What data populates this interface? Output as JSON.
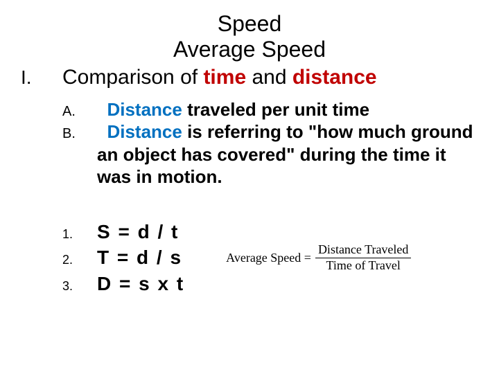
{
  "colors": {
    "background": "#ffffff",
    "text": "#000000",
    "time": "#c00000",
    "distance": "#c00000",
    "distance_word": "#0070c0"
  },
  "title": {
    "line1": "Speed",
    "line2": "Average Speed",
    "fontsize": 32
  },
  "outline": {
    "roman": "I.",
    "main_prefix": "Comparison of ",
    "kw_time": "time",
    "main_and": " and ",
    "kw_distance": "distance",
    "fontsize_main": 30,
    "sub": [
      {
        "label": "A.",
        "leading_word": "Distance",
        "rest": " traveled per unit time"
      },
      {
        "label": "B.",
        "leading_word": "Distance",
        "rest": " is referring to \"how much ground an object has covered\" during the time it was in motion."
      }
    ],
    "sub_fontsize": 26,
    "sub_label_fontsize": 20
  },
  "formulas": {
    "items": [
      {
        "label": "1.",
        "text": "S = d / t"
      },
      {
        "label": "2.",
        "text": "T = d / s"
      },
      {
        "label": "3.",
        "text": "D = s x t"
      }
    ],
    "fontsize": 28,
    "label_fontsize": 18
  },
  "avg_formula": {
    "lhs": "Average Speed = ",
    "numerator": "Distance Traveled",
    "denominator": "Time of Travel",
    "font_family": "Times New Roman",
    "fontsize": 18
  }
}
